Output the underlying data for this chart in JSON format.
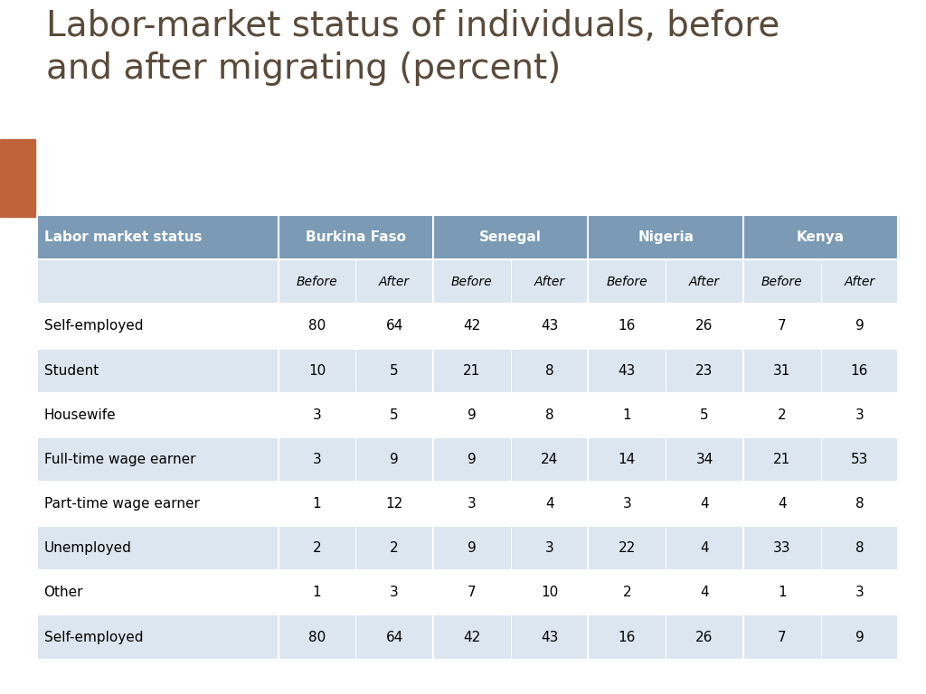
{
  "title": "Labor-market status of individuals, before\nand after migrating (percent)",
  "title_color": "#5a4a3a",
  "title_fontsize": 28,
  "accent_bar_color": "#c0623a",
  "header_bar_color": "#7a9ab5",
  "bg_color": "#ffffff",
  "col_header_bg": "#7a9ab5",
  "col_header_text_color": "#ffffff",
  "subheader_bg": "#dce6f0",
  "row_odd_bg": "#ffffff",
  "row_even_bg": "#dce6f0",
  "table_text_color": "#000000",
  "col_headers": [
    "Labor market status",
    "Burkina Faso",
    "Senegal",
    "Nigeria",
    "Kenya"
  ],
  "sub_headers": [
    "",
    "Before",
    "After",
    "Before",
    "After",
    "Before",
    "After",
    "Before",
    "After"
  ],
  "rows": [
    [
      "Self-employed",
      80,
      64,
      42,
      43,
      16,
      26,
      7,
      9
    ],
    [
      "Student",
      10,
      5,
      21,
      8,
      43,
      23,
      31,
      16
    ],
    [
      "Housewife",
      3,
      5,
      9,
      8,
      1,
      5,
      2,
      3
    ],
    [
      "Full-time wage earner",
      3,
      9,
      9,
      24,
      14,
      34,
      21,
      53
    ],
    [
      "Part-time wage earner",
      1,
      12,
      3,
      4,
      3,
      4,
      4,
      8
    ],
    [
      "Unemployed",
      2,
      2,
      9,
      3,
      22,
      4,
      33,
      8
    ],
    [
      "Other",
      1,
      3,
      7,
      10,
      2,
      4,
      1,
      3
    ],
    [
      "Self-employed",
      80,
      64,
      42,
      43,
      16,
      26,
      7,
      9
    ]
  ]
}
